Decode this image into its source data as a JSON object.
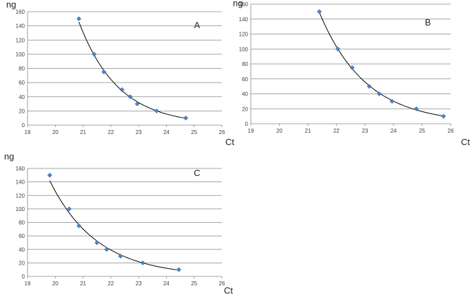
{
  "figure": {
    "accent_color": "#4F81BD",
    "gridline_color": "#868686",
    "curve_color": "#000000"
  },
  "chart_data": [
    {
      "type": "scatter",
      "panel_label": "A",
      "xlabel": "Ct",
      "ylabel": "ng",
      "xlim": [
        19,
        26
      ],
      "ylim": [
        0,
        160
      ],
      "x_ticks": [
        19,
        20,
        21,
        22,
        23,
        24,
        25,
        26
      ],
      "y_ticks": [
        0,
        20,
        40,
        60,
        80,
        100,
        120,
        140,
        160
      ],
      "grid": "horizontal",
      "trendline": "exponential",
      "series": [
        {
          "marker": "diamond",
          "x": [
            20.85,
            21.4,
            21.75,
            22.4,
            22.7,
            22.95,
            23.65,
            24.7
          ],
          "y": [
            150,
            100,
            75,
            50,
            40,
            30,
            20,
            10
          ]
        }
      ]
    },
    {
      "type": "scatter",
      "panel_label": "B",
      "xlabel": "Ct",
      "ylabel": "ng",
      "xlim": [
        19,
        26
      ],
      "ylim": [
        0,
        160
      ],
      "x_ticks": [
        19,
        20,
        21,
        22,
        23,
        24,
        25,
        26
      ],
      "y_ticks": [
        0,
        20,
        40,
        60,
        80,
        100,
        120,
        140,
        160
      ],
      "grid": "horizontal",
      "trendline": "exponential",
      "series": [
        {
          "marker": "diamond",
          "x": [
            21.4,
            22.05,
            22.55,
            23.15,
            23.5,
            23.95,
            24.8,
            25.75
          ],
          "y": [
            150,
            100,
            75,
            50,
            40,
            30,
            20,
            10
          ]
        }
      ]
    },
    {
      "type": "scatter",
      "panel_label": "C",
      "xlabel": "Ct",
      "ylabel": "ng",
      "xlim": [
        19,
        26
      ],
      "ylim": [
        0,
        160
      ],
      "x_ticks": [
        19,
        20,
        21,
        22,
        23,
        24,
        25,
        26
      ],
      "y_ticks": [
        0,
        20,
        40,
        60,
        80,
        100,
        120,
        140,
        160
      ],
      "grid": "horizontal",
      "trendline": "exponential",
      "series": [
        {
          "marker": "diamond",
          "x": [
            19.8,
            20.5,
            20.85,
            21.5,
            21.85,
            22.35,
            23.15,
            24.45
          ],
          "y": [
            150,
            100,
            75,
            50,
            40,
            30,
            20,
            10
          ]
        }
      ]
    }
  ]
}
